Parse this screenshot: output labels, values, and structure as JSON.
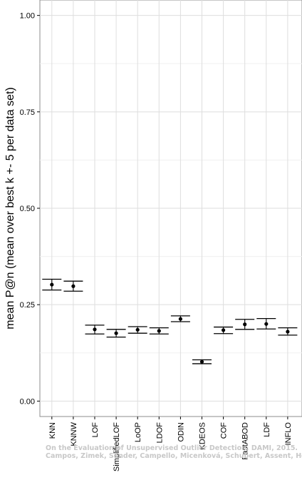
{
  "chart_data": {
    "type": "scatter",
    "ylabel": "mean P@n (mean over best k +- 5 per data set)",
    "xlabel": "",
    "ylim": [
      -0.04,
      1.04
    ],
    "y_ticks": [
      "0.00",
      "0.25",
      "0.50",
      "0.75",
      "1.00"
    ],
    "grid": true,
    "categories": [
      "KNN",
      "KNNW",
      "LOF",
      "SimplifiedLOF",
      "LoOP",
      "LDOF",
      "ODIN",
      "KDEOS",
      "COF",
      "FastABOD",
      "LDF",
      "INFLO"
    ],
    "values": [
      0.302,
      0.298,
      0.186,
      0.176,
      0.185,
      0.182,
      0.213,
      0.102,
      0.184,
      0.199,
      0.2,
      0.18
    ],
    "error_low": [
      0.288,
      0.285,
      0.174,
      0.166,
      0.176,
      0.174,
      0.206,
      0.097,
      0.175,
      0.186,
      0.187,
      0.171
    ],
    "error_high": [
      0.316,
      0.311,
      0.197,
      0.186,
      0.193,
      0.19,
      0.221,
      0.107,
      0.192,
      0.212,
      0.214,
      0.19
    ]
  },
  "watermark": {
    "line1": "On the Evaluation of Unsupervised Outlier Detection, DAMI, 2015.",
    "line2": "Campos, Zimek, Sander, Campello, Micenková, Schubert, Assent, Houle"
  }
}
